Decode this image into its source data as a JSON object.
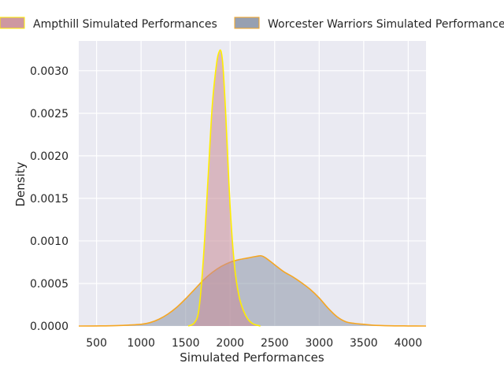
{
  "chart_data": {
    "type": "area",
    "title": "",
    "xlabel": "Simulated Performances",
    "ylabel": "Density",
    "xlim": [
      300,
      4200
    ],
    "ylim": [
      0,
      0.00335
    ],
    "x_ticks": [
      500,
      1000,
      1500,
      2000,
      2500,
      3000,
      3500,
      4000
    ],
    "y_ticks": [
      0.0,
      0.0005,
      0.001,
      0.0015,
      0.002,
      0.0025,
      0.003
    ],
    "y_tick_labels": [
      "0.0000",
      "0.0005",
      "0.0010",
      "0.0015",
      "0.0020",
      "0.0025",
      "0.0030"
    ],
    "grid": true,
    "legend_position": "top",
    "series": [
      {
        "name": "Worcester Warriors Simulated Performances",
        "fill_color": "#8c96a8",
        "line_color": "#f5a623",
        "x": [
          300,
          600,
          800,
          1000,
          1100,
          1200,
          1300,
          1400,
          1500,
          1600,
          1700,
          1800,
          1900,
          2000,
          2100,
          2200,
          2300,
          2350,
          2400,
          2500,
          2600,
          2700,
          2800,
          2900,
          3000,
          3100,
          3200,
          3300,
          3400,
          3500,
          3600,
          3800,
          4000,
          4200
        ],
        "y": [
          0.0,
          2e-06,
          8e-06,
          2e-05,
          4e-05,
          8e-05,
          0.00014,
          0.00022,
          0.00032,
          0.00043,
          0.00054,
          0.00063,
          0.0007,
          0.00075,
          0.00078,
          0.0008,
          0.00082,
          0.000825,
          0.0008,
          0.00072,
          0.00064,
          0.00058,
          0.00051,
          0.00043,
          0.00033,
          0.00021,
          0.00011,
          5e-05,
          3e-05,
          2e-05,
          1e-05,
          3e-06,
          1e-06,
          0.0
        ]
      },
      {
        "name": "Ampthill Simulated Performances",
        "fill_color": "#c98d97",
        "line_color": "#ffee00",
        "x": [
          1530,
          1600,
          1650,
          1700,
          1750,
          1800,
          1850,
          1880,
          1900,
          1920,
          1950,
          2000,
          2050,
          2100,
          2150,
          2200,
          2250,
          2300,
          2340
        ],
        "y": [
          0.0,
          4e-05,
          0.0002,
          0.0008,
          0.0017,
          0.0026,
          0.0031,
          0.00323,
          0.00322,
          0.00305,
          0.0025,
          0.0014,
          0.0007,
          0.00035,
          0.00018,
          8e-05,
          3e-05,
          1e-05,
          0.0
        ]
      }
    ]
  }
}
